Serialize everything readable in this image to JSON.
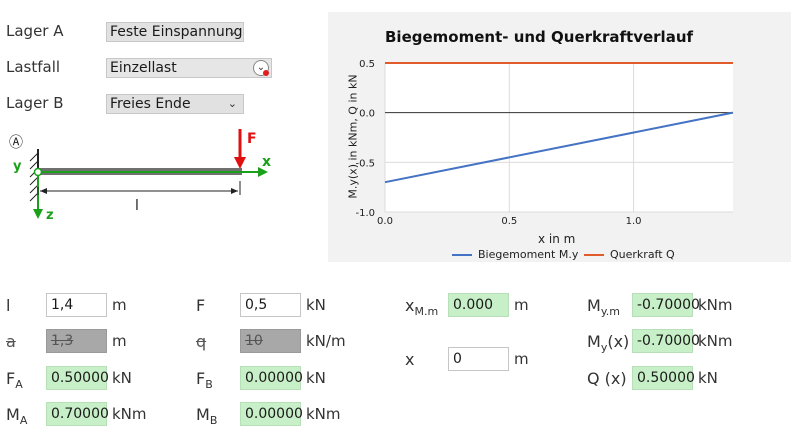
{
  "controls": {
    "lager_a": {
      "label": "Lager A",
      "value": "Feste Einspannung"
    },
    "lastfall": {
      "label": "Lastfall",
      "value": "Einzellast"
    },
    "lager_b": {
      "label": "Lager B",
      "value": "Freies Ende"
    }
  },
  "diagram": {
    "support_label": "Ⓐ",
    "y_axis": "y",
    "z_axis": "z",
    "x_axis": "x",
    "force": "F",
    "length": "l",
    "colors": {
      "beam": "#707070",
      "axis": "#1aa01a",
      "force": "#e01010"
    }
  },
  "chart": {
    "title": "Biegemoment- und Querkraftverlauf",
    "ylabel": "M.y(x) in kNm, Q in kN",
    "xlabel": "x in m",
    "legend": [
      {
        "name": "Biegemoment M.y",
        "color": "#4472c4"
      },
      {
        "name": "Querkraft Q",
        "color": "#e05a2a"
      }
    ]
  },
  "chart_data": {
    "type": "line",
    "xlim": [
      0,
      1.4
    ],
    "ylim": [
      -1.0,
      0.5
    ],
    "x_ticks": [
      "0.0",
      "0.5",
      "1.0"
    ],
    "x_tick_values": [
      0,
      0.5,
      1.0
    ],
    "y_ticks": [
      "0.5",
      "0.0",
      "-0.5",
      "-1.0"
    ],
    "y_tick_values": [
      0.5,
      0.0,
      -0.5,
      -1.0
    ],
    "grid": true,
    "legend_position": "bottom",
    "series": [
      {
        "name": "Biegemoment M.y",
        "x": [
          0,
          1.4
        ],
        "y": [
          -0.7,
          0.0
        ],
        "color": "#4472c4"
      },
      {
        "name": "Querkraft Q",
        "x": [
          0,
          1.4
        ],
        "y": [
          0.5,
          0.5
        ],
        "color": "#e05a2a"
      }
    ]
  },
  "inputs": {
    "l": {
      "sym": "l",
      "value": "1,4",
      "unit": "m"
    },
    "F": {
      "sym": "F",
      "value": "0,5",
      "unit": "kN"
    },
    "a": {
      "sym": "a",
      "value": "1,3",
      "unit": "m"
    },
    "q": {
      "sym": "q",
      "value": "10",
      "unit": "kN/m"
    },
    "xin": {
      "sym": "x",
      "value": "0",
      "unit": "m"
    }
  },
  "results": {
    "FA": {
      "sym": "F",
      "sub": "A",
      "value": "0.50000",
      "unit": "kN"
    },
    "FB": {
      "sym": "F",
      "sub": "B",
      "value": "0.00000",
      "unit": "kN"
    },
    "MA": {
      "sym": "M",
      "sub": "A",
      "value": "0.70000",
      "unit": "kNm"
    },
    "MB": {
      "sym": "M",
      "sub": "B",
      "value": "0.00000",
      "unit": "kNm"
    },
    "xMm": {
      "sym": "x",
      "sub": "M.m",
      "value": "0.000",
      "unit": "m"
    },
    "Mym": {
      "sym": "M",
      "sub": "y.m",
      "value": "-0.70000",
      "unit": "kNm"
    },
    "Myx": {
      "sym": "M",
      "sub": "y",
      "suffix": "(x)",
      "value": "-0.70000",
      "unit": "kNm"
    },
    "Qx": {
      "sym": "Q (x)",
      "value": "0.50000",
      "unit": "kN"
    }
  }
}
